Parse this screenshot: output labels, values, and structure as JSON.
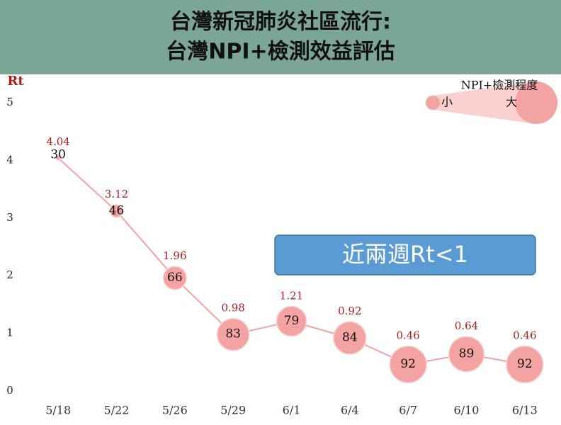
{
  "title": [
    "台灣新冠肺炎社區流行:",
    "台灣NPI+檢測效益評估"
  ],
  "chart_data": {
    "type": "bubble-line",
    "y_label": "Rt",
    "categories": [
      "5/18",
      "5/22",
      "5/26",
      "5/29",
      "6/1",
      "6/4",
      "6/7",
      "6/10",
      "6/13"
    ],
    "series": [
      {
        "name": "Rt",
        "color": "#f4a3a3",
        "values": [
          4.04,
          3.12,
          1.96,
          0.98,
          1.21,
          0.92,
          0.46,
          0.64,
          0.46
        ]
      }
    ],
    "sizes": {
      "name": "NPI+檢測程度",
      "values": [
        30,
        46,
        66,
        83,
        79,
        84,
        92,
        89,
        92
      ]
    },
    "size_legend": {
      "small": "小",
      "large": "大"
    },
    "annotation": "近兩週Rt<1",
    "ylim": [
      0,
      5
    ],
    "yticks": [
      0,
      1,
      2,
      3,
      4,
      5
    ],
    "grid": false
  }
}
